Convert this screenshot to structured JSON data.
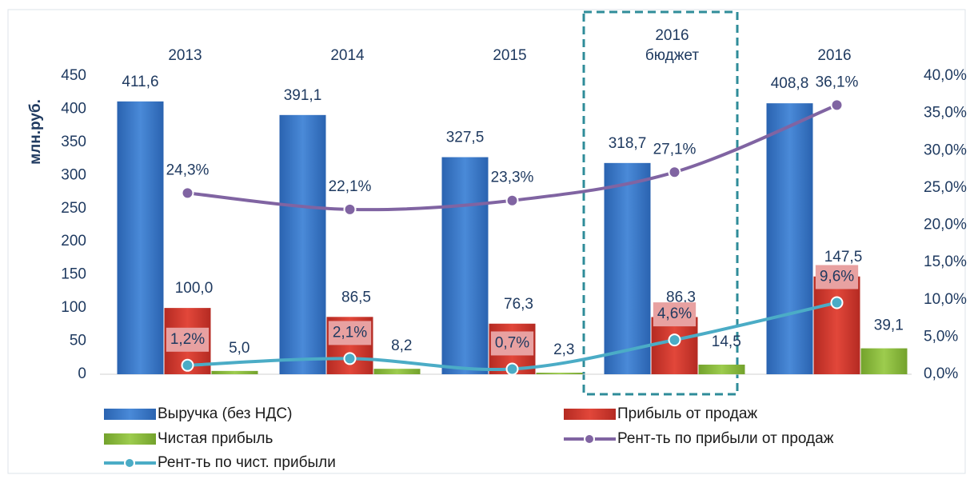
{
  "chart_data": {
    "type": "bar",
    "categories": [
      "2013",
      "2014",
      "2015",
      "2016 бюджет",
      "2016"
    ],
    "y_label": "млн.руб.",
    "ylim": [
      0,
      450
    ],
    "yticks": [
      0,
      50,
      100,
      150,
      200,
      250,
      300,
      350,
      400,
      450
    ],
    "y2lim": [
      0,
      40
    ],
    "y2ticks": [
      {
        "value": 0,
        "label": "0,0%"
      },
      {
        "value": 5,
        "label": "5,0%"
      },
      {
        "value": 10,
        "label": "10,0%"
      },
      {
        "value": 15,
        "label": "15,0%"
      },
      {
        "value": 20,
        "label": "20,0%"
      },
      {
        "value": 25,
        "label": "25,0%"
      },
      {
        "value": 30,
        "label": "30,0%"
      },
      {
        "value": 35,
        "label": "35,0%"
      },
      {
        "value": 40,
        "label": "40,0%"
      }
    ],
    "series": [
      {
        "name": "Выручка (без НДС)",
        "type": "bar",
        "color": "#3b78c9",
        "values": [
          411.6,
          391.1,
          327.5,
          318.7,
          408.8
        ],
        "value_labels": [
          "411,6",
          "391,1",
          "327,5",
          "318,7",
          "408,8"
        ]
      },
      {
        "name": "Прибыль от продаж",
        "type": "bar",
        "color": "#d23a2f",
        "values": [
          100.0,
          86.5,
          76.3,
          86.3,
          147.5
        ],
        "value_labels": [
          "100,0",
          "86,5",
          "76,3",
          "86,3",
          "147,5"
        ]
      },
      {
        "name": "Чистая прибыль",
        "type": "bar",
        "color": "#8cbc3f",
        "values": [
          5.0,
          8.2,
          2.3,
          14.5,
          39.1
        ],
        "value_labels": [
          "5,0",
          "8,2",
          "2,3",
          "14,5",
          "39,1"
        ]
      },
      {
        "name": "Рент-ть по прибыли от продаж",
        "type": "line",
        "axis": "y2",
        "color": "#8064a2",
        "values": [
          24.3,
          22.1,
          23.3,
          27.1,
          36.1
        ],
        "value_labels": [
          "24,3%",
          "22,1%",
          "23,3%",
          "27,1%",
          "36,1%"
        ]
      },
      {
        "name": "Рент-ть по чист. прибыли",
        "type": "line",
        "axis": "y2",
        "color": "#4bacc6",
        "values": [
          1.2,
          2.1,
          0.7,
          4.6,
          9.6
        ],
        "value_labels": [
          "1,2%",
          "2,1%",
          "0,7%",
          "4,6%",
          "9,6%"
        ]
      }
    ]
  }
}
